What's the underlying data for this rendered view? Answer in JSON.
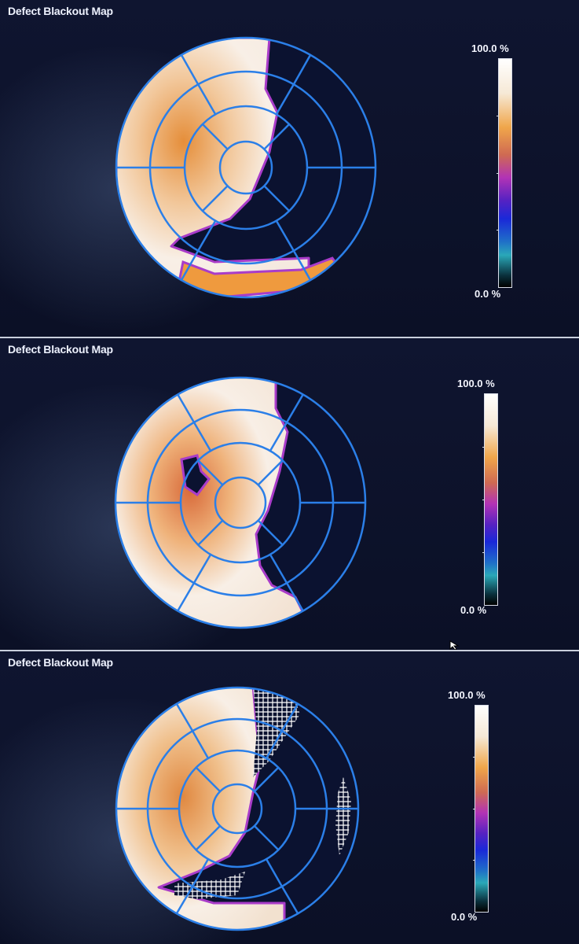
{
  "panels": [
    {
      "title": "Defect Blackout Map",
      "scale_max": "100.0 %",
      "scale_min": "0.0 %"
    },
    {
      "title": "Defect Blackout Map",
      "scale_max": "100.0 %",
      "scale_min": "0.0 %"
    },
    {
      "title": "Defect Blackout Map",
      "scale_max": "100.0 %",
      "scale_min": "0.0 %"
    }
  ],
  "colors": {
    "grid_line": "#2b7fe8",
    "perfusion_high": "#f6f1ec",
    "perfusion_mid": "#e9a146",
    "defect_background": "#0b1230",
    "divider": "#c9cfdc"
  },
  "icons": {
    "pointer": "arrow-cursor-icon"
  }
}
